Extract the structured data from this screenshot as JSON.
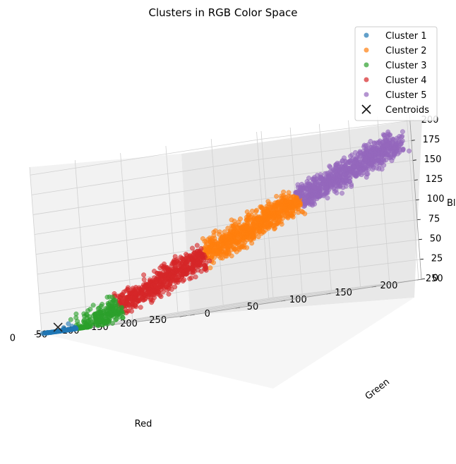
{
  "chart_data": {
    "type": "scatter",
    "projection": "3d",
    "title": "Clusters in RGB Color Space",
    "xlabel": "Red",
    "ylabel": "Green",
    "zlabel": "Bl",
    "xlim": [
      0,
      255
    ],
    "ylim": [
      0,
      255
    ],
    "zlim": [
      0,
      210
    ],
    "xticks": [
      0,
      50,
      100,
      150,
      200,
      250
    ],
    "yticks": [
      0,
      50,
      100,
      150,
      200,
      250
    ],
    "zticks": [
      0,
      25,
      50,
      75,
      100,
      125,
      150,
      175,
      200
    ],
    "grid": true,
    "legend_position": "top-right",
    "series": [
      {
        "name": "Cluster 1",
        "color": "#1f77b4",
        "brightness_range": [
          0,
          22
        ]
      },
      {
        "name": "Cluster 2",
        "color": "#ff7f0e",
        "brightness_range": [
          115,
          185
        ]
      },
      {
        "name": "Cluster 3",
        "color": "#2ca02c",
        "brightness_range": [
          22,
          52
        ]
      },
      {
        "name": "Cluster 4",
        "color": "#d62728",
        "brightness_range": [
          52,
          115
        ]
      },
      {
        "name": "Cluster 5",
        "color": "#9467bd",
        "brightness_range": [
          185,
          240
        ]
      }
    ],
    "centroids": {
      "name": "Centroids",
      "color": "#222222",
      "marker": "x",
      "points": [
        [
          13,
          10,
          5
        ]
      ]
    }
  }
}
